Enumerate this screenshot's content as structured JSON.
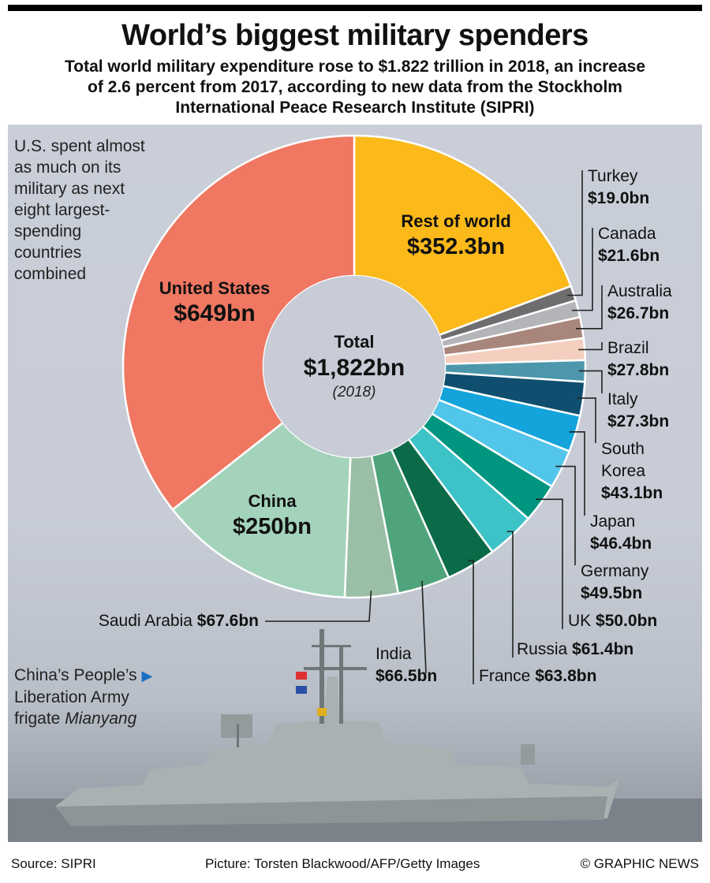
{
  "header": {
    "title": "World’s biggest military spenders",
    "subtitle_line1": "Total world military expenditure rose to $1.822 trillion in 2018, an increase",
    "subtitle_line2": "of 2.6 percent from 2017, according to new data from the Stockholm",
    "subtitle_line3": "International Peace Research Institute (SIPRI)"
  },
  "note": {
    "line1": "U.S. spent almost",
    "line2": "as much on its",
    "line3": "military as next",
    "line4": "eight largest-",
    "line5": "spending",
    "line6": "countries",
    "line7": "combined"
  },
  "caption": {
    "line1": "China’s People’s",
    "line2": "Liberation Army",
    "line3_prefix": "frigate ",
    "line3_italic": "Mianyang"
  },
  "footer": {
    "source": "Source: SIPRI",
    "picture": "Picture: Torsten Blackwood/AFP/Getty Images",
    "credit": "© GRAPHIC NEWS"
  },
  "chart_data": {
    "type": "pie",
    "center": {
      "label": "Total",
      "value": "$1,822bn",
      "year": "(2018)"
    },
    "slices": [
      {
        "name": "Rest of world",
        "value": 352.3,
        "label": "$352.3bn",
        "color": "#fbb91a"
      },
      {
        "name": "Turkey",
        "value": 19.0,
        "label": "$19.0bn",
        "color": "#6e6e70"
      },
      {
        "name": "Canada",
        "value": 21.6,
        "label": "$21.6bn",
        "color": "#b3b5b8"
      },
      {
        "name": "Australia",
        "value": 26.7,
        "label": "$26.7bn",
        "color": "#a9867c"
      },
      {
        "name": "Brazil",
        "value": 27.8,
        "label": "$27.8bn",
        "color": "#f4cfbf"
      },
      {
        "name": "Italy",
        "value": 27.3,
        "label": "$27.3bn",
        "color": "#4c97ac"
      },
      {
        "name": "South Korea",
        "value": 43.1,
        "label": "$43.1bn",
        "color": "#0f4e6e"
      },
      {
        "name": "Japan",
        "value": 46.4,
        "label": "$46.4bn",
        "color": "#14a3db"
      },
      {
        "name": "Germany",
        "value": 49.5,
        "label": "$49.5bn",
        "color": "#52c5ea"
      },
      {
        "name": "UK",
        "value": 50.0,
        "label": "$50.0bn",
        "color": "#00957e"
      },
      {
        "name": "Russia",
        "value": 61.4,
        "label": "$61.4bn",
        "color": "#3dc3c7"
      },
      {
        "name": "France",
        "value": 63.8,
        "label": "$63.8bn",
        "color": "#0b6a47"
      },
      {
        "name": "India",
        "value": 66.5,
        "label": "$66.5bn",
        "color": "#4fa47c"
      },
      {
        "name": "Saudi Arabia",
        "value": 67.6,
        "label": "$67.6bn",
        "color": "#9bbfa6"
      },
      {
        "name": "China",
        "value": 250,
        "label": "$250bn",
        "color": "#a4d3bb"
      },
      {
        "name": "United States",
        "value": 649,
        "label": "$649bn",
        "color": "#f07762"
      }
    ]
  }
}
